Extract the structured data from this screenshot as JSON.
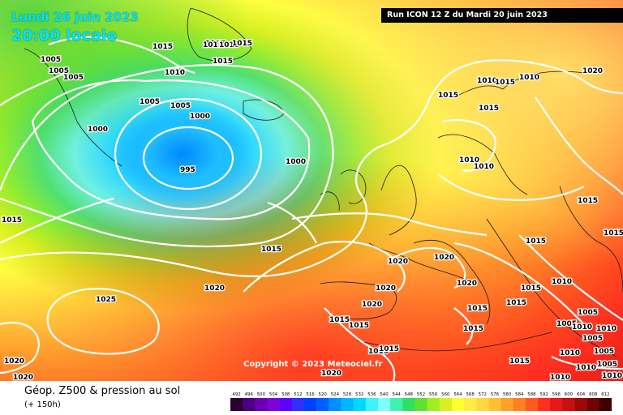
{
  "header": {
    "date": "Lundi 26 juin 2023",
    "time": "20:00 locale",
    "run": "Run ICON 12 Z du Mardi 20 juin 2023"
  },
  "copyright": "Copyright © 2023 Meteociel.fr",
  "legend": {
    "title": "Géop. Z500 & pression au sol",
    "subtitle": "(+ 150h)",
    "scale_values": [
      492,
      496,
      500,
      504,
      508,
      512,
      516,
      520,
      524,
      528,
      532,
      536,
      540,
      544,
      548,
      552,
      556,
      560,
      564,
      568,
      572,
      576,
      580,
      584,
      588,
      592,
      596,
      600,
      604,
      608,
      612
    ],
    "scale_colors": [
      "#2a0030",
      "#4a0080",
      "#6a00b0",
      "#8000d8",
      "#6000ff",
      "#3030ff",
      "#0040ff",
      "#0060ff",
      "#0090ff",
      "#00b8ff",
      "#00d8ff",
      "#40f0ff",
      "#80ffff",
      "#40f0b0",
      "#30e060",
      "#60e030",
      "#a0ee20",
      "#d8f020",
      "#ffff30",
      "#ffec40",
      "#ffd840",
      "#ffbf30",
      "#ffa028",
      "#ff8020",
      "#ff5a20",
      "#ff3020",
      "#e81818",
      "#c81010",
      "#a00808",
      "#700404",
      "#400000"
    ]
  },
  "isobars": [
    {
      "label": "1015",
      "key": "a"
    },
    {
      "label": "1010",
      "key": "b"
    },
    {
      "label": "1015",
      "key": "c"
    },
    {
      "label": "1015",
      "key": "d"
    },
    {
      "label": "1005",
      "key": "e"
    },
    {
      "label": "1005",
      "key": "f"
    },
    {
      "label": "1005",
      "key": "g"
    },
    {
      "label": "1005",
      "key": "h"
    },
    {
      "label": "1005",
      "key": "i"
    },
    {
      "label": "1000",
      "key": "j"
    },
    {
      "label": "1000",
      "key": "k"
    },
    {
      "label": "995",
      "key": "l"
    },
    {
      "label": "1000",
      "key": "m"
    },
    {
      "label": "1015",
      "key": "n"
    },
    {
      "label": "1015",
      "key": "o"
    },
    {
      "label": "1015",
      "key": "p"
    },
    {
      "label": "1015",
      "key": "q"
    },
    {
      "label": "1020",
      "key": "r"
    },
    {
      "label": "1010",
      "key": "s"
    },
    {
      "label": "1010",
      "key": "t"
    },
    {
      "label": "1015",
      "key": "u"
    },
    {
      "label": "1020",
      "key": "v"
    },
    {
      "label": "1015",
      "key": "w"
    },
    {
      "label": "1020",
      "key": "x"
    },
    {
      "label": "1025",
      "key": "y"
    },
    {
      "label": "1020",
      "key": "z"
    },
    {
      "label": "1020",
      "key": "aa"
    },
    {
      "label": "1015",
      "key": "ab"
    },
    {
      "label": "1020",
      "key": "ac"
    },
    {
      "label": "1020",
      "key": "ad"
    },
    {
      "label": "1020",
      "key": "ae"
    },
    {
      "label": "1015",
      "key": "af"
    },
    {
      "label": "1015",
      "key": "ag"
    },
    {
      "label": "1015",
      "key": "ah"
    },
    {
      "label": "1010",
      "key": "ai"
    },
    {
      "label": "1015",
      "key": "aj"
    },
    {
      "label": "1015",
      "key": "ak"
    },
    {
      "label": "1015",
      "key": "al"
    },
    {
      "label": "1015",
      "key": "am"
    },
    {
      "label": "1010",
      "key": "an"
    },
    {
      "label": "1005",
      "key": "ao"
    },
    {
      "label": "1005",
      "key": "ap"
    },
    {
      "label": "1010",
      "key": "aq"
    },
    {
      "label": "1020",
      "key": "ar"
    },
    {
      "label": "1020",
      "key": "as"
    },
    {
      "label": "1010",
      "key": "at"
    },
    {
      "label": "1015",
      "key": "au"
    },
    {
      "label": "1015",
      "key": "av"
    },
    {
      "label": "1015",
      "key": "aw"
    },
    {
      "label": "1020",
      "key": "ax"
    },
    {
      "label": "1015",
      "key": "ay"
    },
    {
      "label": "1015",
      "key": "az"
    },
    {
      "label": "1015",
      "key": "ba"
    },
    {
      "label": "1010",
      "key": "bb"
    },
    {
      "label": "1010",
      "key": "bc"
    },
    {
      "label": "1005",
      "key": "bd"
    },
    {
      "label": "1005",
      "key": "be"
    },
    {
      "label": "1005",
      "key": "bf"
    },
    {
      "label": "1010",
      "key": "bg"
    },
    {
      "label": "1010",
      "key": "bh"
    },
    {
      "label": "1010",
      "key": "bi"
    }
  ]
}
